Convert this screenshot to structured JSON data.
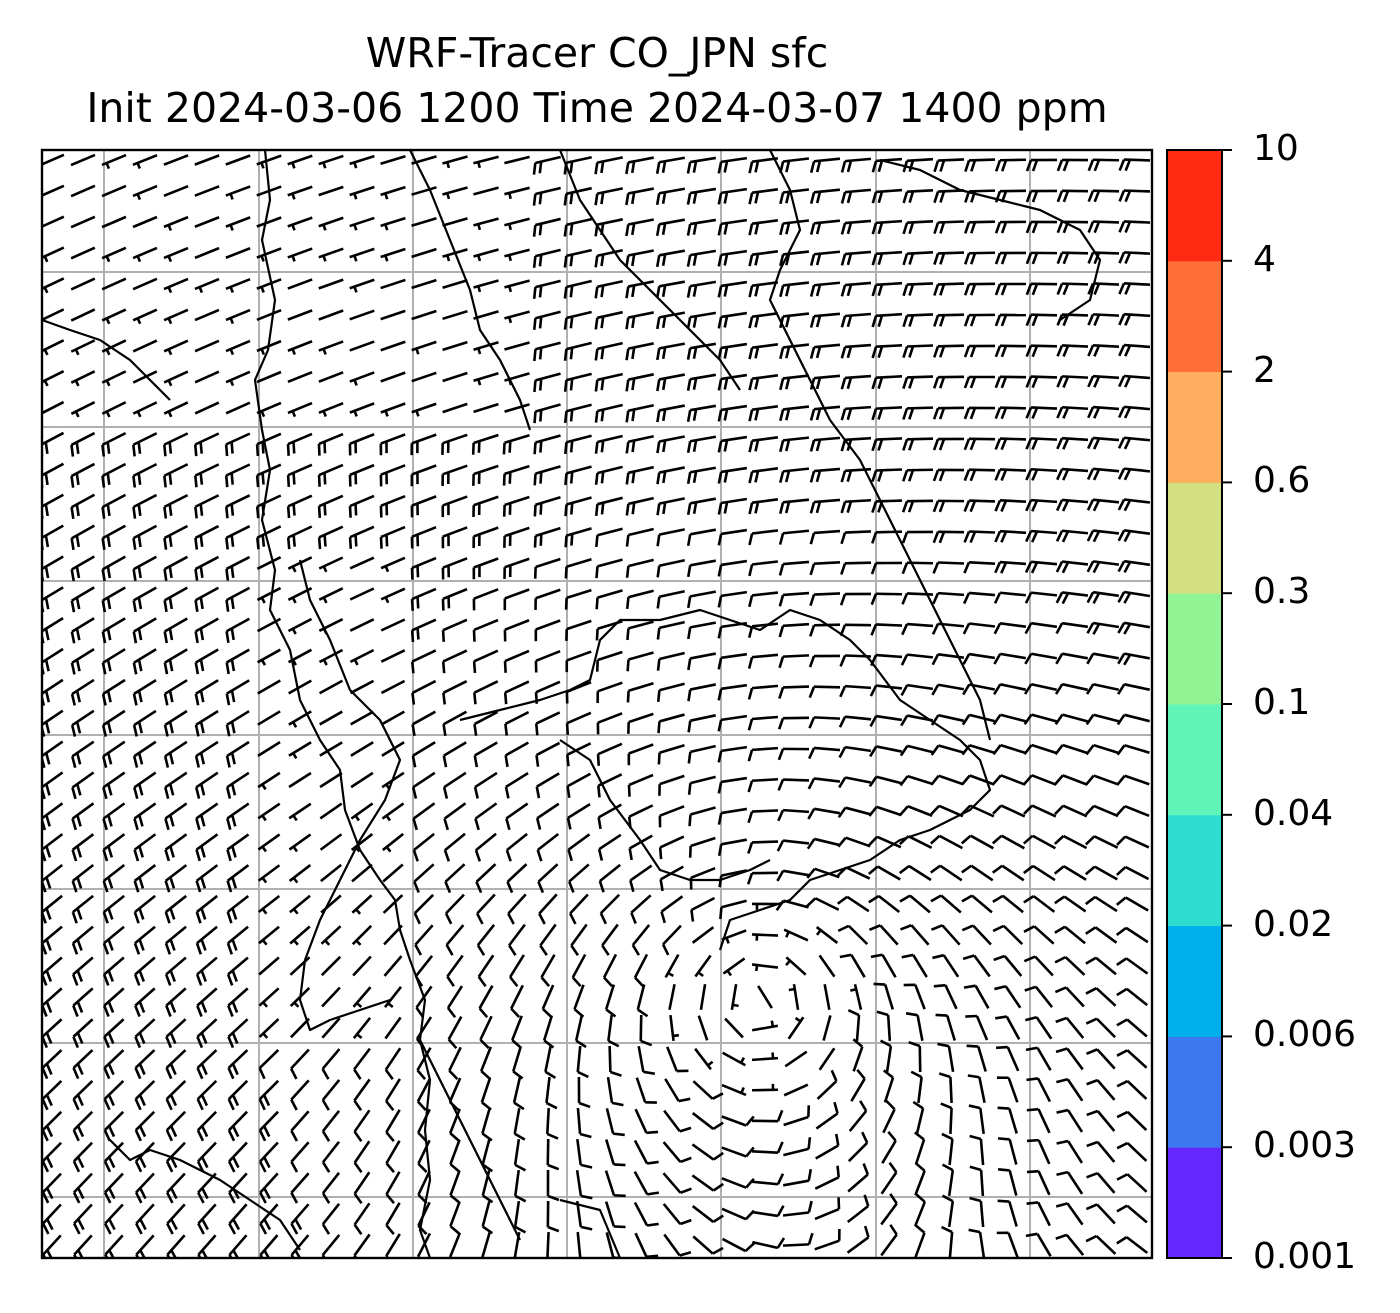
{
  "title": {
    "line1": "WRF-Tracer CO_JPN sfc",
    "line2": "Init 2024-03-06 1200 Time 2024-03-07 1400 ppm"
  },
  "colorbar": {
    "levels": [
      {
        "label": "0.001",
        "color": "#6428ff"
      },
      {
        "label": "0.003",
        "color": "#3c78f0"
      },
      {
        "label": "0.006",
        "color": "#00b0ec"
      },
      {
        "label": "0.02",
        "color": "#2edcd0"
      },
      {
        "label": "0.04",
        "color": "#60f4b8"
      },
      {
        "label": "0.1",
        "color": "#90f494"
      },
      {
        "label": "0.3",
        "color": "#d2e082"
      },
      {
        "label": "0.6",
        "color": "#feb060"
      },
      {
        "label": "2",
        "color": "#ff7038"
      },
      {
        "label": "4",
        "color": "#ff2a12"
      },
      {
        "label": "10",
        "color": null
      }
    ]
  },
  "map": {
    "gridline_color": "#b0b0b0",
    "coastline_color": "#000000",
    "barb_color": "#000000"
  }
}
